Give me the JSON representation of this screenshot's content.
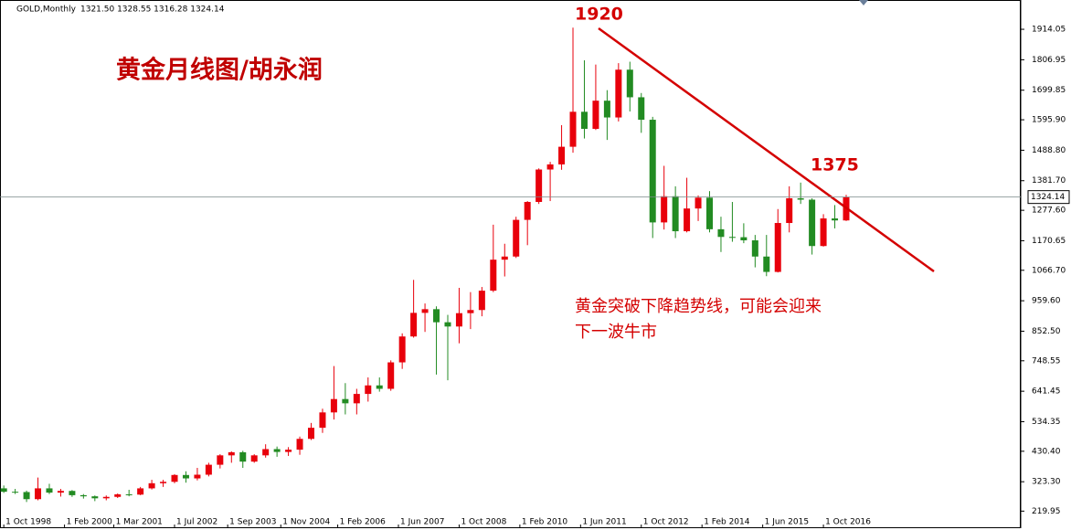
{
  "chart_data": {
    "type": "candlestick",
    "symbol": "GOLD,Monthly",
    "ohlc_text": "1321.50 1328.55 1316.28 1324.14",
    "title": "黄金月线图/胡永润",
    "annotations": [
      "1920",
      "1375"
    ],
    "note": [
      "黄金突破下降趋势线，可能会迎来",
      "下一波牛市"
    ],
    "up_color": "#e8000b",
    "down_color": "#228b22",
    "current": 1324.14,
    "candles": [
      [
        300,
        310,
        284,
        288
      ],
      [
        288,
        298,
        280,
        287
      ],
      [
        287,
        292,
        252,
        262
      ],
      [
        262,
        338,
        258,
        300
      ],
      [
        300,
        316,
        280,
        285
      ],
      [
        285,
        298,
        271,
        291
      ],
      [
        291,
        294,
        270,
        276
      ],
      [
        276,
        280,
        264,
        272
      ],
      [
        272,
        275,
        255,
        265
      ],
      [
        265,
        275,
        258,
        270
      ],
      [
        270,
        282,
        266,
        279
      ],
      [
        279,
        295,
        272,
        278
      ],
      [
        278,
        305,
        276,
        300
      ],
      [
        300,
        330,
        296,
        318
      ],
      [
        318,
        330,
        305,
        323
      ],
      [
        323,
        350,
        318,
        347
      ],
      [
        347,
        360,
        320,
        335
      ],
      [
        335,
        372,
        328,
        348
      ],
      [
        348,
        390,
        342,
        383
      ],
      [
        383,
        420,
        370,
        416
      ],
      [
        416,
        430,
        390,
        427
      ],
      [
        427,
        432,
        372,
        394
      ],
      [
        394,
        420,
        390,
        416
      ],
      [
        416,
        455,
        408,
        438
      ],
      [
        438,
        447,
        411,
        428
      ],
      [
        428,
        445,
        414,
        436
      ],
      [
        436,
        482,
        418,
        474
      ],
      [
        474,
        530,
        470,
        513
      ],
      [
        513,
        580,
        495,
        567
      ],
      [
        567,
        730,
        542,
        614
      ],
      [
        614,
        670,
        560,
        599
      ],
      [
        599,
        650,
        560,
        632
      ],
      [
        632,
        690,
        605,
        662
      ],
      [
        662,
        690,
        640,
        650
      ],
      [
        650,
        750,
        643,
        743
      ],
      [
        743,
        845,
        720,
        834
      ],
      [
        834,
        1033,
        830,
        917
      ],
      [
        917,
        950,
        850,
        930
      ],
      [
        930,
        940,
        700,
        884
      ],
      [
        884,
        910,
        680,
        869
      ],
      [
        869,
        1005,
        810,
        916
      ],
      [
        916,
        990,
        860,
        927
      ],
      [
        927,
        1008,
        905,
        995
      ],
      [
        995,
        1227,
        990,
        1104
      ],
      [
        1104,
        1160,
        1045,
        1115
      ],
      [
        1115,
        1255,
        1110,
        1244
      ],
      [
        1244,
        1310,
        1155,
        1307
      ],
      [
        1307,
        1425,
        1300,
        1421
      ],
      [
        1421,
        1448,
        1310,
        1439
      ],
      [
        1439,
        1577,
        1420,
        1501
      ],
      [
        1501,
        1920,
        1480,
        1624
      ],
      [
        1624,
        1805,
        1530,
        1564
      ],
      [
        1564,
        1790,
        1560,
        1663
      ],
      [
        1663,
        1700,
        1525,
        1604
      ],
      [
        1604,
        1795,
        1590,
        1772
      ],
      [
        1772,
        1800,
        1625,
        1675
      ],
      [
        1675,
        1690,
        1550,
        1596
      ],
      [
        1596,
        1606,
        1180,
        1235
      ],
      [
        1235,
        1434,
        1210,
        1327
      ],
      [
        1327,
        1362,
        1180,
        1204
      ],
      [
        1204,
        1392,
        1200,
        1284
      ],
      [
        1284,
        1330,
        1240,
        1322
      ],
      [
        1322,
        1345,
        1200,
        1211
      ],
      [
        1211,
        1255,
        1131,
        1184
      ],
      [
        1184,
        1307,
        1167,
        1183
      ],
      [
        1183,
        1232,
        1162,
        1172
      ],
      [
        1172,
        1191,
        1077,
        1115
      ],
      [
        1115,
        1191,
        1046,
        1061
      ],
      [
        1061,
        1282,
        1059,
        1233
      ],
      [
        1233,
        1362,
        1200,
        1320
      ],
      [
        1320,
        1375,
        1300,
        1315
      ],
      [
        1315,
        1320,
        1122,
        1152
      ],
      [
        1152,
        1264,
        1150,
        1249
      ],
      [
        1249,
        1296,
        1214,
        1242
      ],
      [
        1242,
        1332,
        1240,
        1324
      ]
    ],
    "xlim": [
      -1,
      268
    ],
    "xticks": [
      {
        "value": 0,
        "label": "1 Oct 1998"
      },
      {
        "value": 16,
        "label": "1 Feb 2000"
      },
      {
        "value": 29,
        "label": "1 Mar 2001"
      },
      {
        "value": 45,
        "label": "1 Jul 2002"
      },
      {
        "value": 59,
        "label": "1 Sep 2003"
      },
      {
        "value": 73,
        "label": "1 Nov 2004"
      },
      {
        "value": 88,
        "label": "1 Feb 2006"
      },
      {
        "value": 104,
        "label": "1 Jun 2007"
      },
      {
        "value": 120,
        "label": "1 Oct 2008"
      },
      {
        "value": 136,
        "label": "1 Feb 2010"
      },
      {
        "value": 152,
        "label": "1 Jun 2011"
      },
      {
        "value": 168,
        "label": "1 Oct 2012"
      },
      {
        "value": 184,
        "label": "1 Feb 2014"
      },
      {
        "value": 200,
        "label": "1 Jun 2015"
      },
      {
        "value": 216,
        "label": "1 Oct 2016"
      }
    ],
    "ylim": [
      160,
      2017
    ],
    "yticks": [
      219.95,
      {
        "value": 323.3,
        "label": "323.30"
      },
      {
        "value": 430.4,
        "label": "430.40"
      },
      534.35,
      641.45,
      748.55,
      {
        "value": 852.5,
        "label": "852.50"
      },
      {
        "value": 959.6,
        "label": "959.60"
      },
      {
        "value": 1066.7,
        "label": "1066.70"
      },
      1170.65,
      {
        "value": 1277.6,
        "label": "1277.60"
      },
      {
        "value": 1381.7,
        "label": "1381.70"
      },
      {
        "value": 1488.8,
        "label": "1488.80"
      },
      {
        "value": 1595.9,
        "label": "1595.90"
      },
      1699.85,
      1806.95,
      1914.05
    ]
  }
}
